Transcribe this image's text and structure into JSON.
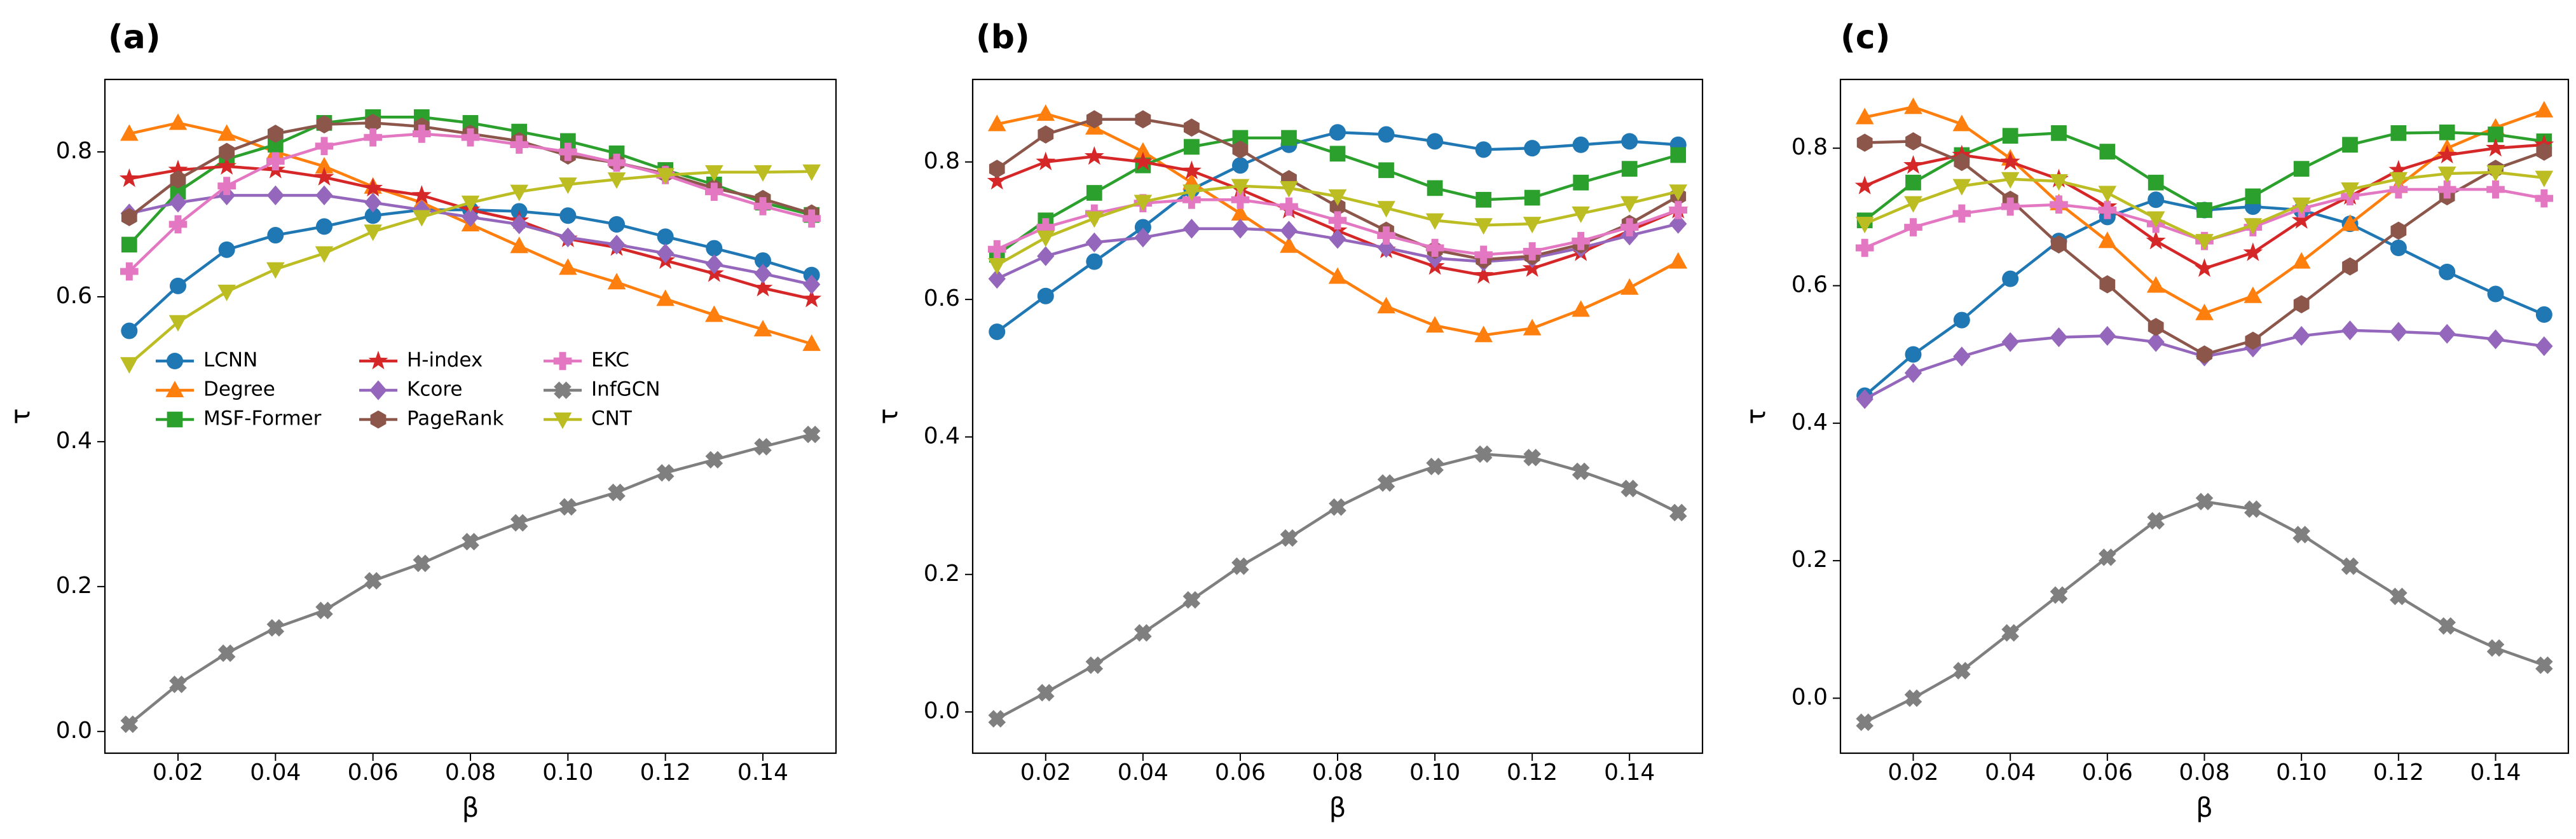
{
  "chart_data": [
    {
      "type": "line",
      "panel_label": "(a)",
      "xlabel": "β",
      "ylabel": "τ",
      "xlim": [
        0.005,
        0.155
      ],
      "ylim": [
        -0.03,
        0.9
      ],
      "xticks": [
        0.02,
        0.04,
        0.06,
        0.08,
        0.1,
        0.12,
        0.14
      ],
      "xtick_labels": [
        "0.02",
        "0.04",
        "0.06",
        "0.08",
        "0.10",
        "0.12",
        "0.14"
      ],
      "yticks": [
        0.0,
        0.2,
        0.4,
        0.6,
        0.8
      ],
      "ytick_labels": [
        "0.0",
        "0.2",
        "0.4",
        "0.6",
        "0.8"
      ],
      "grid": false,
      "legend": {
        "placement": "center-left",
        "columns": 3
      },
      "x": [
        0.01,
        0.02,
        0.03,
        0.04,
        0.05,
        0.06,
        0.07,
        0.08,
        0.09,
        0.1,
        0.11,
        0.12,
        0.13,
        0.14,
        0.15
      ],
      "series": [
        {
          "name": "LCNN",
          "color": "#1f77b4",
          "marker": "circle",
          "values": [
            0.553,
            0.615,
            0.665,
            0.685,
            0.697,
            0.712,
            0.72,
            0.72,
            0.718,
            0.712,
            0.7,
            0.683,
            0.667,
            0.65,
            0.63
          ]
        },
        {
          "name": "Degree",
          "color": "#ff7f0e",
          "marker": "triangle-up",
          "values": [
            0.825,
            0.84,
            0.825,
            0.8,
            0.78,
            0.752,
            0.73,
            0.7,
            0.67,
            0.64,
            0.62,
            0.597,
            0.575,
            0.555,
            0.535
          ]
        },
        {
          "name": "MSF-Former",
          "color": "#2ca02c",
          "marker": "square",
          "values": [
            0.672,
            0.745,
            0.79,
            0.81,
            0.84,
            0.848,
            0.848,
            0.84,
            0.828,
            0.815,
            0.798,
            0.775,
            0.755,
            0.73,
            0.713
          ]
        },
        {
          "name": "H-index",
          "color": "#d62728",
          "marker": "star",
          "values": [
            0.763,
            0.775,
            0.78,
            0.775,
            0.765,
            0.75,
            0.74,
            0.72,
            0.705,
            0.68,
            0.668,
            0.65,
            0.632,
            0.612,
            0.597
          ]
        },
        {
          "name": "Kcore",
          "color": "#9467bd",
          "marker": "diamond",
          "values": [
            0.715,
            0.73,
            0.74,
            0.74,
            0.74,
            0.73,
            0.72,
            0.71,
            0.7,
            0.682,
            0.672,
            0.66,
            0.645,
            0.632,
            0.617
          ]
        },
        {
          "name": "PageRank",
          "color": "#8c564b",
          "marker": "hexagon",
          "values": [
            0.71,
            0.762,
            0.8,
            0.825,
            0.838,
            0.84,
            0.835,
            0.825,
            0.815,
            0.795,
            0.785,
            0.77,
            0.75,
            0.735,
            0.715
          ]
        },
        {
          "name": "EKC",
          "color": "#e377c2",
          "marker": "plus",
          "values": [
            0.635,
            0.7,
            0.753,
            0.787,
            0.808,
            0.82,
            0.825,
            0.82,
            0.81,
            0.8,
            0.785,
            0.768,
            0.745,
            0.725,
            0.708
          ]
        },
        {
          "name": "InfGCN",
          "color": "#7f7f7f",
          "marker": "x",
          "values": [
            0.01,
            0.065,
            0.108,
            0.143,
            0.167,
            0.208,
            0.232,
            0.262,
            0.288,
            0.31,
            0.33,
            0.357,
            0.375,
            0.393,
            0.41
          ]
        },
        {
          "name": "CNT",
          "color": "#bcbd22",
          "marker": "triangle-down",
          "values": [
            0.507,
            0.565,
            0.607,
            0.638,
            0.66,
            0.69,
            0.71,
            0.73,
            0.745,
            0.755,
            0.762,
            0.768,
            0.772,
            0.772,
            0.773
          ]
        }
      ]
    },
    {
      "type": "line",
      "panel_label": "(b)",
      "xlabel": "β",
      "ylabel": "τ",
      "xlim": [
        0.005,
        0.155
      ],
      "ylim": [
        -0.06,
        0.92
      ],
      "xticks": [
        0.02,
        0.04,
        0.06,
        0.08,
        0.1,
        0.12,
        0.14
      ],
      "xtick_labels": [
        "0.02",
        "0.04",
        "0.06",
        "0.08",
        "0.10",
        "0.12",
        "0.14"
      ],
      "yticks": [
        0.0,
        0.2,
        0.4,
        0.6,
        0.8
      ],
      "ytick_labels": [
        "0.0",
        "0.2",
        "0.4",
        "0.6",
        "0.8"
      ],
      "grid": false,
      "x": [
        0.01,
        0.02,
        0.03,
        0.04,
        0.05,
        0.06,
        0.07,
        0.08,
        0.09,
        0.1,
        0.11,
        0.12,
        0.13,
        0.14,
        0.15
      ],
      "series": [
        {
          "name": "LCNN",
          "color": "#1f77b4",
          "marker": "circle",
          "values": [
            0.553,
            0.605,
            0.655,
            0.705,
            0.76,
            0.795,
            0.825,
            0.843,
            0.84,
            0.83,
            0.818,
            0.82,
            0.825,
            0.83,
            0.825
          ]
        },
        {
          "name": "Degree",
          "color": "#ff7f0e",
          "marker": "triangle-up",
          "values": [
            0.855,
            0.87,
            0.85,
            0.815,
            0.77,
            0.725,
            0.678,
            0.633,
            0.59,
            0.562,
            0.548,
            0.558,
            0.585,
            0.617,
            0.655
          ]
        },
        {
          "name": "MSF-Former",
          "color": "#2ca02c",
          "marker": "square",
          "values": [
            0.665,
            0.715,
            0.755,
            0.795,
            0.822,
            0.835,
            0.835,
            0.812,
            0.788,
            0.762,
            0.745,
            0.748,
            0.77,
            0.79,
            0.81
          ]
        },
        {
          "name": "H-index",
          "color": "#d62728",
          "marker": "star",
          "values": [
            0.772,
            0.8,
            0.808,
            0.8,
            0.787,
            0.76,
            0.73,
            0.7,
            0.672,
            0.648,
            0.635,
            0.645,
            0.668,
            0.7,
            0.73
          ]
        },
        {
          "name": "Kcore",
          "color": "#9467bd",
          "marker": "diamond",
          "values": [
            0.63,
            0.663,
            0.683,
            0.69,
            0.703,
            0.703,
            0.7,
            0.688,
            0.675,
            0.66,
            0.655,
            0.66,
            0.675,
            0.693,
            0.71
          ]
        },
        {
          "name": "PageRank",
          "color": "#8c564b",
          "marker": "hexagon",
          "values": [
            0.79,
            0.84,
            0.862,
            0.862,
            0.85,
            0.818,
            0.775,
            0.735,
            0.7,
            0.672,
            0.658,
            0.663,
            0.68,
            0.71,
            0.75
          ]
        },
        {
          "name": "EKC",
          "color": "#e377c2",
          "marker": "plus",
          "values": [
            0.673,
            0.705,
            0.725,
            0.74,
            0.745,
            0.745,
            0.735,
            0.715,
            0.693,
            0.675,
            0.665,
            0.67,
            0.685,
            0.705,
            0.73
          ]
        },
        {
          "name": "InfGCN",
          "color": "#7f7f7f",
          "marker": "x",
          "values": [
            -0.01,
            0.028,
            0.068,
            0.115,
            0.163,
            0.212,
            0.253,
            0.298,
            0.333,
            0.357,
            0.375,
            0.37,
            0.35,
            0.325,
            0.29
          ]
        },
        {
          "name": "CNT",
          "color": "#bcbd22",
          "marker": "triangle-down",
          "values": [
            0.65,
            0.69,
            0.718,
            0.742,
            0.757,
            0.765,
            0.762,
            0.75,
            0.733,
            0.715,
            0.708,
            0.71,
            0.725,
            0.74,
            0.757
          ]
        }
      ]
    },
    {
      "type": "line",
      "panel_label": "(c)",
      "xlabel": "β",
      "ylabel": "τ",
      "xlim": [
        0.005,
        0.155
      ],
      "ylim": [
        -0.08,
        0.9
      ],
      "xticks": [
        0.02,
        0.04,
        0.06,
        0.08,
        0.1,
        0.12,
        0.14
      ],
      "xtick_labels": [
        "0.02",
        "0.04",
        "0.06",
        "0.08",
        "0.10",
        "0.12",
        "0.14"
      ],
      "yticks": [
        0.0,
        0.2,
        0.4,
        0.6,
        0.8
      ],
      "ytick_labels": [
        "0.0",
        "0.2",
        "0.4",
        "0.6",
        "0.8"
      ],
      "grid": false,
      "x": [
        0.01,
        0.02,
        0.03,
        0.04,
        0.05,
        0.06,
        0.07,
        0.08,
        0.09,
        0.1,
        0.11,
        0.12,
        0.13,
        0.14,
        0.15
      ],
      "series": [
        {
          "name": "LCNN",
          "color": "#1f77b4",
          "marker": "circle",
          "values": [
            0.44,
            0.5,
            0.55,
            0.61,
            0.665,
            0.7,
            0.725,
            0.71,
            0.715,
            0.71,
            0.69,
            0.655,
            0.62,
            0.588,
            0.558
          ]
        },
        {
          "name": "Degree",
          "color": "#ff7f0e",
          "marker": "triangle-up",
          "values": [
            0.845,
            0.86,
            0.835,
            0.785,
            0.72,
            0.665,
            0.6,
            0.56,
            0.585,
            0.635,
            0.69,
            0.745,
            0.8,
            0.83,
            0.855
          ]
        },
        {
          "name": "MSF-Former",
          "color": "#2ca02c",
          "marker": "square",
          "values": [
            0.695,
            0.75,
            0.79,
            0.818,
            0.822,
            0.795,
            0.75,
            0.71,
            0.73,
            0.77,
            0.805,
            0.822,
            0.823,
            0.82,
            0.81
          ]
        },
        {
          "name": "H-index",
          "color": "#d62728",
          "marker": "star",
          "values": [
            0.745,
            0.775,
            0.79,
            0.78,
            0.755,
            0.715,
            0.665,
            0.625,
            0.648,
            0.695,
            0.73,
            0.768,
            0.79,
            0.8,
            0.805
          ]
        },
        {
          "name": "Kcore",
          "color": "#9467bd",
          "marker": "diamond",
          "values": [
            0.435,
            0.473,
            0.497,
            0.518,
            0.525,
            0.527,
            0.518,
            0.497,
            0.51,
            0.527,
            0.535,
            0.533,
            0.53,
            0.522,
            0.512
          ]
        },
        {
          "name": "PageRank",
          "color": "#8c564b",
          "marker": "hexagon",
          "values": [
            0.808,
            0.81,
            0.78,
            0.725,
            0.66,
            0.602,
            0.54,
            0.5,
            0.52,
            0.573,
            0.628,
            0.68,
            0.73,
            0.77,
            0.795
          ]
        },
        {
          "name": "EKC",
          "color": "#e377c2",
          "marker": "plus",
          "values": [
            0.655,
            0.685,
            0.705,
            0.715,
            0.718,
            0.71,
            0.69,
            0.665,
            0.685,
            0.712,
            0.73,
            0.74,
            0.74,
            0.74,
            0.727
          ]
        },
        {
          "name": "InfGCN",
          "color": "#7f7f7f",
          "marker": "x",
          "values": [
            -0.035,
            0.0,
            0.04,
            0.095,
            0.15,
            0.205,
            0.258,
            0.286,
            0.275,
            0.238,
            0.192,
            0.148,
            0.105,
            0.073,
            0.048
          ]
        },
        {
          "name": "CNT",
          "color": "#bcbd22",
          "marker": "triangle-down",
          "values": [
            0.69,
            0.72,
            0.745,
            0.755,
            0.752,
            0.735,
            0.698,
            0.665,
            0.688,
            0.718,
            0.74,
            0.755,
            0.763,
            0.765,
            0.757
          ]
        }
      ]
    }
  ]
}
